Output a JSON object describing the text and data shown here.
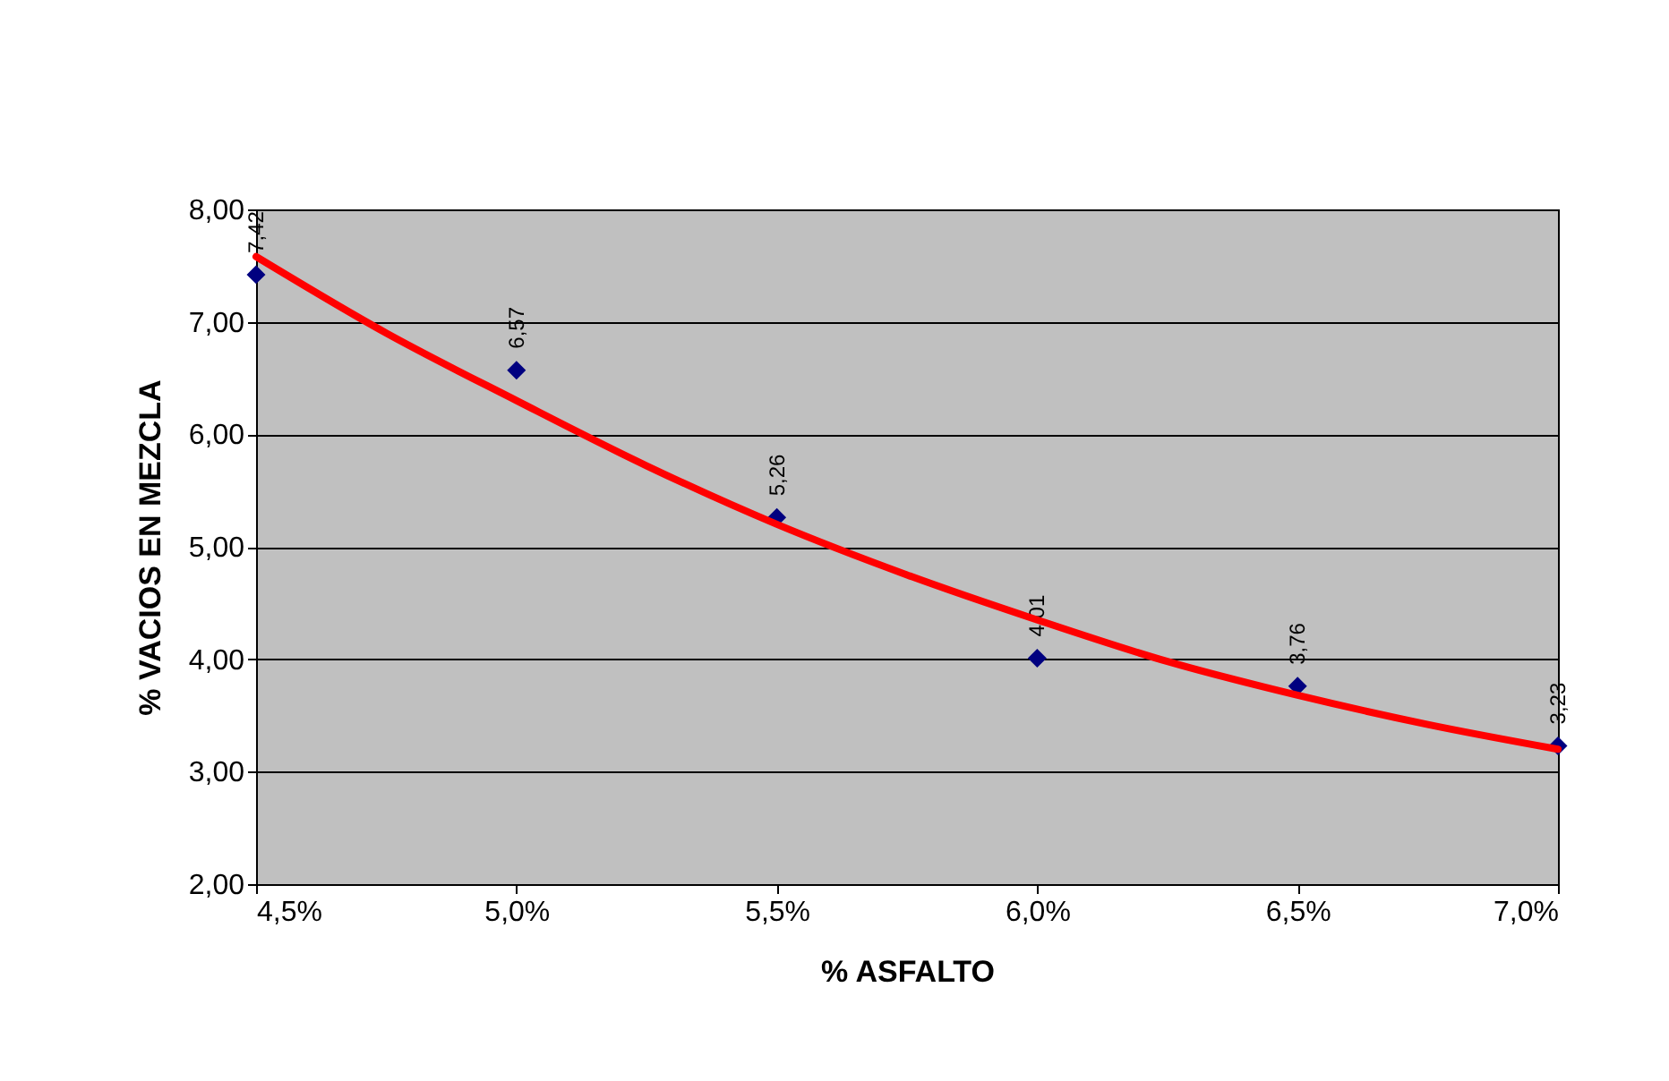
{
  "chart_data": {
    "type": "scatter",
    "xlabel": "% ASFALTO",
    "ylabel": "% VACIOS EN MEZCLA",
    "xlim": [
      4.5,
      7.0
    ],
    "ylim": [
      2,
      8
    ],
    "xticks": [
      {
        "value": 4.5,
        "label": "4,5%"
      },
      {
        "value": 5.0,
        "label": "5,0%"
      },
      {
        "value": 5.5,
        "label": "5,5%"
      },
      {
        "value": 6.0,
        "label": "6,0%"
      },
      {
        "value": 6.5,
        "label": "6,5%"
      },
      {
        "value": 7.0,
        "label": "7,0%"
      }
    ],
    "yticks": [
      {
        "value": 2,
        "label": "2,00"
      },
      {
        "value": 3,
        "label": "3,00"
      },
      {
        "value": 4,
        "label": "4,00"
      },
      {
        "value": 5,
        "label": "5,00"
      },
      {
        "value": 6,
        "label": "6,00"
      },
      {
        "value": 7,
        "label": "7,00"
      },
      {
        "value": 8,
        "label": "8,00"
      }
    ],
    "grid": "y",
    "marker": "diamond",
    "series": [
      {
        "type": "scatter",
        "color": "#000080",
        "x": [
          4.5,
          5.0,
          5.5,
          6.0,
          6.5,
          7.0
        ],
        "values": [
          7.42,
          6.57,
          5.26,
          4.01,
          3.76,
          3.23
        ],
        "value_labels": [
          "7,42",
          "6,57",
          "5,26",
          "4,01",
          "3,76",
          "3,23"
        ]
      },
      {
        "type": "line",
        "color": "#ff0000",
        "marker": "none",
        "line_style": "solid",
        "x": [
          4.5,
          4.75,
          5.0,
          5.25,
          5.5,
          5.75,
          6.0,
          6.25,
          6.5,
          6.75,
          7.0
        ],
        "values": [
          7.58,
          6.9,
          6.3,
          5.72,
          5.2,
          4.75,
          4.35,
          3.98,
          3.68,
          3.42,
          3.2
        ]
      }
    ]
  }
}
